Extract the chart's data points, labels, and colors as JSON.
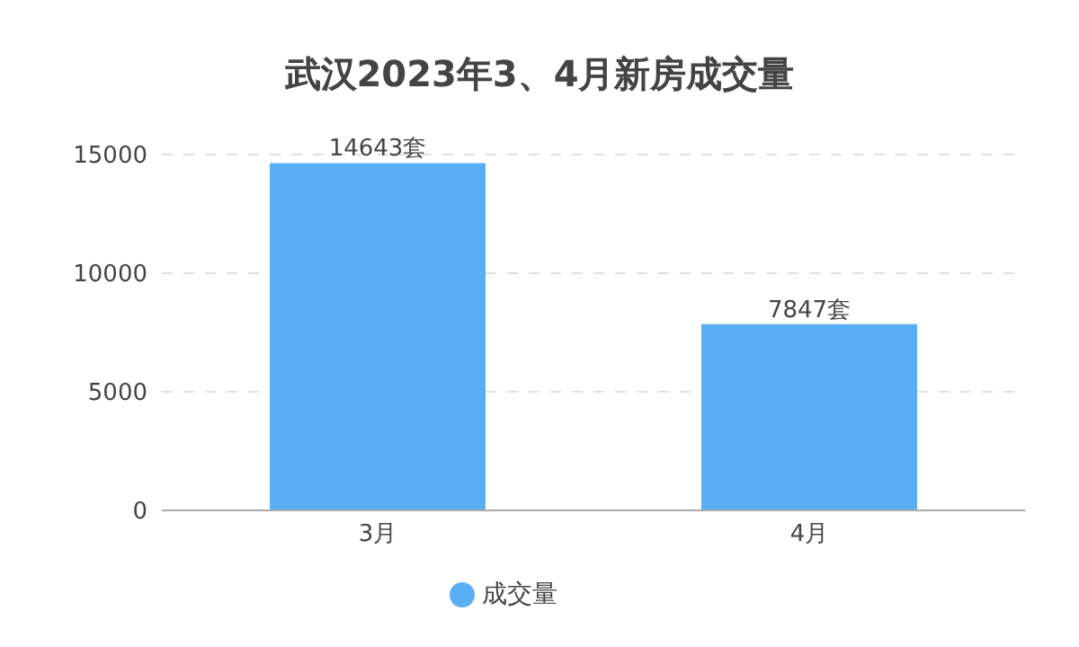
{
  "chart_data": {
    "type": "bar",
    "title": "武汉2023年3、4月新房成交量",
    "categories": [
      "3月",
      "4月"
    ],
    "series": [
      {
        "name": "成交量",
        "color": "#5aaef4",
        "values": [
          14643,
          7847
        ],
        "value_labels": [
          "14643套",
          "7847套"
        ]
      }
    ],
    "ylim": [
      0,
      15000
    ],
    "yticks": [
      0,
      5000,
      10000,
      15000
    ],
    "grid": "y",
    "legend": "bottom"
  }
}
